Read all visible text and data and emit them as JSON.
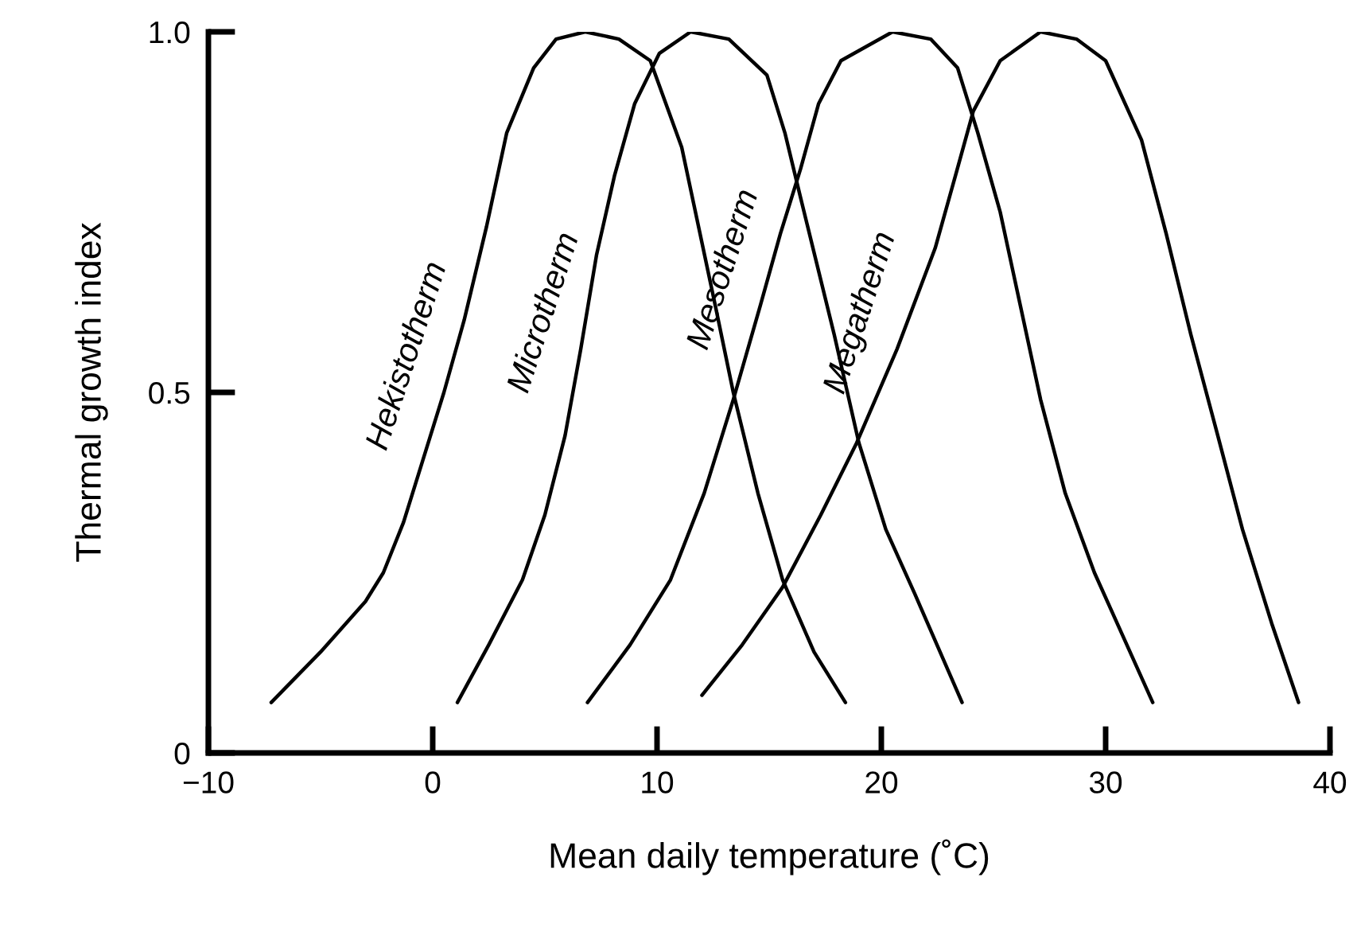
{
  "chart_data": {
    "type": "line",
    "xlabel": "Mean daily temperature (˚C)",
    "ylabel": "Thermal growth index",
    "xlim": [
      -10,
      40
    ],
    "xticks": [
      {
        "value": -10,
        "label": "−10"
      },
      0,
      10,
      20,
      30,
      40
    ],
    "ylim": [
      0,
      1.0
    ],
    "yticks": [
      0,
      0.5,
      {
        "value": 1.0,
        "label": "1.0"
      }
    ],
    "grid": false,
    "legend": false,
    "marker": "none",
    "line_style": "solid",
    "series": [
      {
        "name": "Hekistotherm",
        "color": "#000000",
        "x": [
          -7.2,
          -5,
          -3,
          -2.2,
          -1.3,
          -0.5,
          0.5,
          1.4,
          2.4,
          3.3,
          4.5,
          5.5,
          6.8,
          8.3,
          9.7,
          11.1,
          12.6,
          13.4,
          14.5,
          15.6,
          17,
          18.4
        ],
        "values": [
          0.07,
          0.14,
          0.21,
          0.25,
          0.32,
          0.4,
          0.5,
          0.6,
          0.73,
          0.86,
          0.95,
          0.99,
          1.0,
          0.99,
          0.96,
          0.84,
          0.62,
          0.5,
          0.36,
          0.24,
          0.14,
          0.07
        ]
      },
      {
        "name": "Microtherm",
        "color": "#000000",
        "x": [
          1.1,
          2.5,
          4.0,
          5.0,
          5.9,
          6.6,
          7.3,
          8.1,
          9.0,
          10.1,
          11.5,
          13.2,
          14.9,
          15.7,
          16.4,
          17.9,
          19.0,
          20.2,
          21.5,
          23.6
        ],
        "values": [
          0.07,
          0.15,
          0.24,
          0.33,
          0.44,
          0.56,
          0.69,
          0.8,
          0.9,
          0.97,
          1.0,
          0.99,
          0.94,
          0.86,
          0.77,
          0.58,
          0.43,
          0.31,
          0.22,
          0.07
        ]
      },
      {
        "name": "Mesotherm",
        "color": "#000000",
        "x": [
          6.9,
          8.8,
          10.6,
          12.1,
          13.4,
          14.6,
          15.5,
          16.4,
          17.2,
          18.2,
          20.5,
          22.2,
          23.4,
          24.3,
          25.3,
          26.2,
          27.1,
          28.2,
          29.5,
          32.1
        ],
        "values": [
          0.07,
          0.15,
          0.24,
          0.36,
          0.49,
          0.62,
          0.72,
          0.81,
          0.9,
          0.96,
          1.0,
          0.99,
          0.95,
          0.86,
          0.75,
          0.62,
          0.49,
          0.36,
          0.25,
          0.07
        ]
      },
      {
        "name": "Megatherm",
        "color": "#000000",
        "x": [
          12.0,
          13.8,
          15.6,
          17.3,
          18.9,
          20.7,
          22.4,
          23.3,
          24.1,
          25.3,
          27.1,
          28.7,
          30.0,
          31.6,
          32.7,
          33.8,
          35,
          36.1,
          37.4,
          38.6
        ],
        "values": [
          0.08,
          0.15,
          0.23,
          0.33,
          0.43,
          0.56,
          0.7,
          0.8,
          0.89,
          0.96,
          1.0,
          0.99,
          0.96,
          0.85,
          0.72,
          0.58,
          0.44,
          0.31,
          0.18,
          0.07
        ]
      }
    ]
  }
}
